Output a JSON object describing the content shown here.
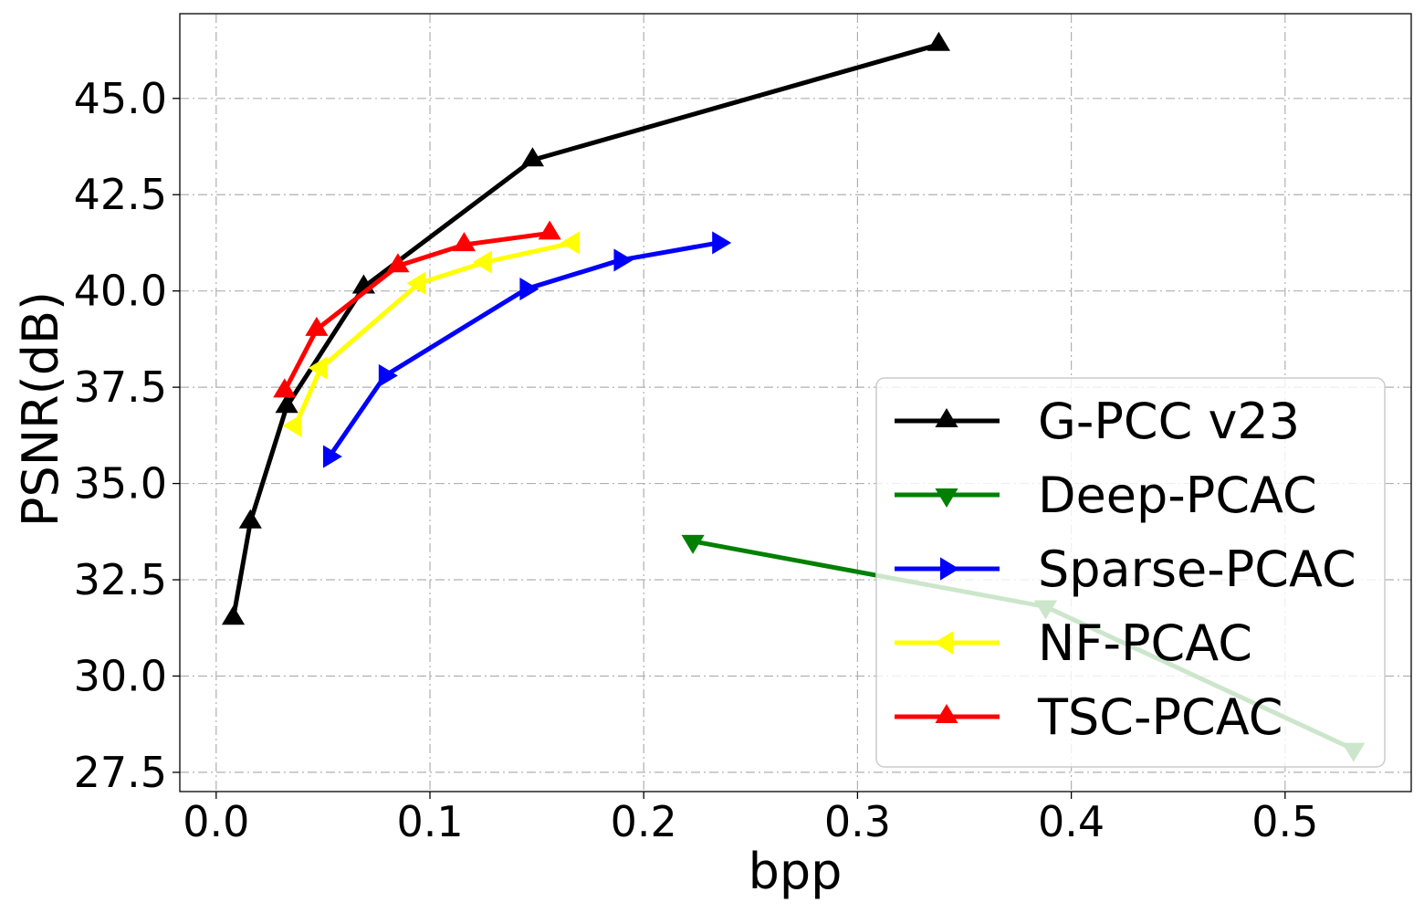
{
  "chart_data": {
    "type": "line",
    "title": "",
    "xlabel": "bpp",
    "ylabel": "PSNR(dB)",
    "xlim": [
      -0.017,
      0.559
    ],
    "ylim": [
      27.0,
      47.2
    ],
    "x_ticks": [
      0.0,
      0.1,
      0.2,
      0.3,
      0.4,
      0.5
    ],
    "x_tick_labels": [
      "0.0",
      "0.1",
      "0.2",
      "0.3",
      "0.4",
      "0.5"
    ],
    "y_ticks": [
      27.5,
      30.0,
      32.5,
      35.0,
      37.5,
      40.0,
      42.5,
      45.0
    ],
    "y_tick_labels": [
      "27.5",
      "30.0",
      "32.5",
      "35.0",
      "37.5",
      "40.0",
      "42.5",
      "45.0"
    ],
    "grid": true,
    "legend_position": "lower-right",
    "series": [
      {
        "name": "G-PCC v23",
        "color": "#000000",
        "marker": "triangle-up",
        "x": [
          0.008,
          0.016,
          0.033,
          0.069,
          0.148,
          0.338
        ],
        "y": [
          31.5,
          34.0,
          37.0,
          40.1,
          43.4,
          46.4
        ]
      },
      {
        "name": "Deep-PCAC",
        "color": "#008000",
        "marker": "triangle-down",
        "x": [
          0.223,
          0.388,
          0.532
        ],
        "y": [
          33.5,
          31.8,
          28.1
        ]
      },
      {
        "name": "Sparse-PCAC",
        "color": "#0000ff",
        "marker": "triangle-right",
        "x": [
          0.053,
          0.079,
          0.145,
          0.189,
          0.235
        ],
        "y": [
          35.7,
          37.8,
          40.05,
          40.8,
          41.25
        ]
      },
      {
        "name": "NF-PCAC",
        "color": "#ffff00",
        "marker": "triangle-left",
        "x": [
          0.037,
          0.049,
          0.095,
          0.126,
          0.167
        ],
        "y": [
          36.5,
          38.0,
          40.2,
          40.75,
          41.25
        ]
      },
      {
        "name": "TSC-PCAC",
        "color": "#ff0000",
        "marker": "triangle-up",
        "x": [
          0.032,
          0.047,
          0.085,
          0.116,
          0.156
        ],
        "y": [
          37.4,
          39.0,
          40.65,
          41.2,
          41.5
        ]
      }
    ]
  }
}
